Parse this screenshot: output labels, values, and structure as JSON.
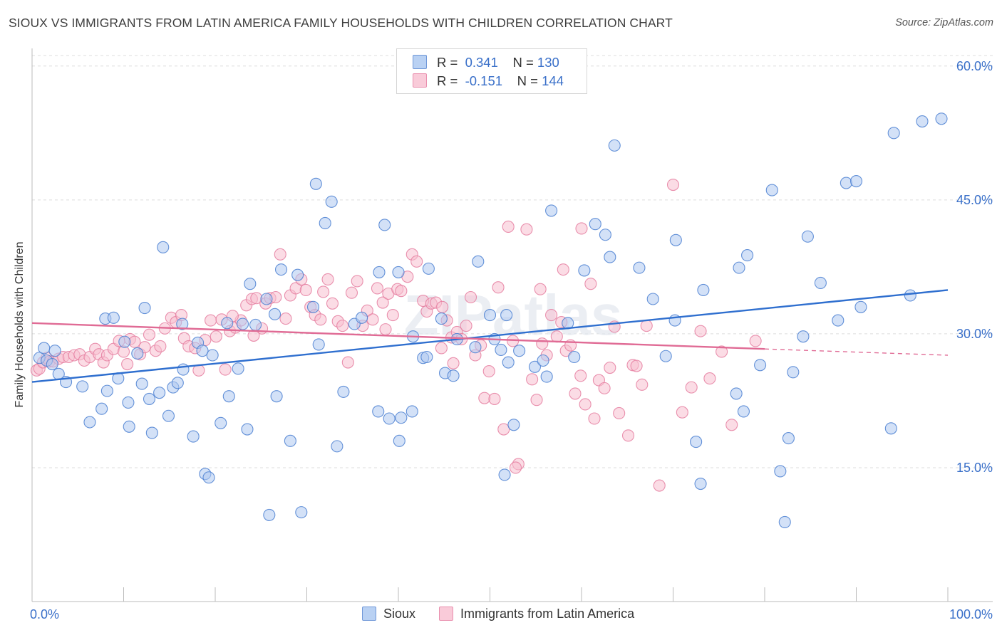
{
  "title": "SIOUX VS IMMIGRANTS FROM LATIN AMERICA FAMILY HOUSEHOLDS WITH CHILDREN CORRELATION CHART",
  "source": "Source: ZipAtlas.com",
  "watermark": "ZIPatlas",
  "legend": {
    "rows": [
      {
        "r_label": "R =",
        "r_value": "0.341",
        "n_label": "N =",
        "n_value": "130"
      },
      {
        "r_label": "R =",
        "r_value": "-0.151",
        "n_label": "N =",
        "n_value": "144"
      }
    ]
  },
  "bottom_legend": [
    {
      "label": "Sioux"
    },
    {
      "label": "Immigrants from Latin America"
    }
  ],
  "colors": {
    "series1_fill": "#aec9f0",
    "series1_stroke": "#4a7fd1",
    "series1_line": "#2f6fcf",
    "series2_fill": "#f7bfd0",
    "series2_stroke": "#e57ea0",
    "series2_line": "#e06b95",
    "tick_label": "#3a70c9",
    "grid": "#dcdcdc"
  },
  "chart_data": {
    "type": "scatter",
    "title": "SIOUX VS IMMIGRANTS FROM LATIN AMERICA FAMILY HOUSEHOLDS WITH CHILDREN CORRELATION CHART",
    "xlabel": "",
    "ylabel": "Family Households with Children",
    "xlim": [
      0,
      100
    ],
    "ylim": [
      0,
      61.5
    ],
    "x_tick_labels": [
      "0.0%",
      "100.0%"
    ],
    "y_ticks": [
      15,
      30,
      45,
      60
    ],
    "y_tick_labels": [
      "15.0%",
      "30.0%",
      "45.0%",
      "60.0%"
    ],
    "grid": "horizontal dashed",
    "legend_position": "top-center",
    "series": [
      {
        "name": "Sioux",
        "r": 0.341,
        "n": 130,
        "trend": {
          "x": [
            0,
            100
          ],
          "y": [
            24.6,
            34.9
          ]
        },
        "points": [
          [
            0.8,
            27.3
          ],
          [
            1.3,
            28.4
          ],
          [
            1.6,
            27.0
          ],
          [
            2.2,
            26.6
          ],
          [
            2.5,
            28.1
          ],
          [
            2.9,
            25.5
          ],
          [
            3.7,
            24.6
          ],
          [
            5.5,
            24.1
          ],
          [
            6.3,
            20.1
          ],
          [
            7.6,
            21.6
          ],
          [
            8.0,
            31.7
          ],
          [
            8.2,
            23.6
          ],
          [
            8.9,
            31.8
          ],
          [
            9.4,
            25.0
          ],
          [
            10.1,
            29.1
          ],
          [
            10.5,
            22.3
          ],
          [
            10.6,
            19.6
          ],
          [
            11.5,
            27.8
          ],
          [
            12.0,
            24.4
          ],
          [
            12.3,
            32.9
          ],
          [
            12.8,
            22.7
          ],
          [
            13.1,
            18.9
          ],
          [
            13.9,
            23.4
          ],
          [
            14.3,
            39.7
          ],
          [
            14.9,
            20.8
          ],
          [
            15.4,
            24.0
          ],
          [
            15.9,
            24.5
          ],
          [
            16.4,
            31.1
          ],
          [
            16.5,
            26.0
          ],
          [
            17.6,
            18.5
          ],
          [
            18.1,
            29.0
          ],
          [
            18.6,
            28.1
          ],
          [
            18.9,
            14.3
          ],
          [
            19.3,
            13.9
          ],
          [
            19.7,
            27.6
          ],
          [
            20.6,
            20.0
          ],
          [
            21.3,
            31.2
          ],
          [
            21.5,
            23.0
          ],
          [
            22.5,
            26.1
          ],
          [
            23.0,
            31.1
          ],
          [
            23.5,
            19.3
          ],
          [
            23.8,
            35.6
          ],
          [
            24.4,
            31.0
          ],
          [
            25.6,
            33.9
          ],
          [
            25.9,
            9.7
          ],
          [
            26.5,
            32.2
          ],
          [
            26.7,
            23.0
          ],
          [
            27.2,
            37.2
          ],
          [
            28.2,
            18.0
          ],
          [
            29.0,
            36.6
          ],
          [
            29.4,
            10.0
          ],
          [
            30.7,
            33.0
          ],
          [
            31.0,
            46.8
          ],
          [
            31.3,
            28.8
          ],
          [
            32.0,
            42.4
          ],
          [
            32.7,
            44.8
          ],
          [
            33.3,
            17.4
          ],
          [
            34.0,
            23.5
          ],
          [
            35.2,
            31.1
          ],
          [
            36.0,
            31.8
          ],
          [
            37.8,
            21.3
          ],
          [
            37.9,
            36.9
          ],
          [
            39.0,
            20.5
          ],
          [
            38.5,
            42.2
          ],
          [
            40.0,
            36.9
          ],
          [
            40.1,
            18.0
          ],
          [
            40.3,
            20.6
          ],
          [
            41.5,
            21.3
          ],
          [
            41.6,
            29.7
          ],
          [
            42.7,
            27.3
          ],
          [
            43.1,
            27.4
          ],
          [
            43.3,
            37.3
          ],
          [
            44.7,
            31.7
          ],
          [
            45.1,
            25.6
          ],
          [
            46.0,
            25.3
          ],
          [
            46.4,
            29.4
          ],
          [
            48.4,
            28.5
          ],
          [
            48.7,
            38.1
          ],
          [
            50.0,
            32.1
          ],
          [
            50.5,
            29.4
          ],
          [
            51.2,
            28.2
          ],
          [
            51.6,
            14.2
          ],
          [
            51.8,
            32.1
          ],
          [
            52.0,
            26.8
          ],
          [
            52.6,
            19.8
          ],
          [
            53.2,
            28.1
          ],
          [
            54.9,
            26.3
          ],
          [
            55.8,
            27.0
          ],
          [
            56.2,
            25.2
          ],
          [
            56.7,
            43.8
          ],
          [
            58.5,
            31.2
          ],
          [
            59.2,
            27.4
          ],
          [
            60.3,
            37.1
          ],
          [
            61.5,
            42.3
          ],
          [
            62.6,
            41.1
          ],
          [
            63.1,
            38.6
          ],
          [
            63.6,
            51.1
          ],
          [
            66.3,
            37.4
          ],
          [
            67.8,
            33.9
          ],
          [
            69.2,
            27.5
          ],
          [
            70.2,
            31.5
          ],
          [
            70.3,
            40.5
          ],
          [
            72.5,
            17.9
          ],
          [
            73.0,
            13.2
          ],
          [
            73.3,
            34.9
          ],
          [
            76.9,
            23.3
          ],
          [
            77.2,
            37.4
          ],
          [
            77.7,
            21.3
          ],
          [
            78.1,
            38.8
          ],
          [
            79.5,
            26.5
          ],
          [
            80.8,
            46.1
          ],
          [
            81.7,
            14.6
          ],
          [
            82.2,
            8.9
          ],
          [
            82.6,
            18.3
          ],
          [
            83.1,
            25.7
          ],
          [
            84.2,
            29.7
          ],
          [
            84.7,
            40.9
          ],
          [
            86.1,
            35.7
          ],
          [
            88.0,
            31.5
          ],
          [
            88.9,
            46.9
          ],
          [
            90.0,
            47.1
          ],
          [
            90.5,
            33.0
          ],
          [
            93.8,
            19.4
          ],
          [
            94.1,
            52.5
          ],
          [
            95.9,
            34.3
          ],
          [
            97.2,
            53.8
          ],
          [
            99.3,
            54.1
          ]
        ]
      },
      {
        "name": "Immigrants from Latin America",
        "r": -0.151,
        "n": 144,
        "trend": {
          "x": [
            0,
            80
          ],
          "y": [
            31.2,
            28.3
          ]
        },
        "trend_dashed": {
          "x": [
            80,
            100
          ],
          "y": [
            28.3,
            27.6
          ]
        },
        "points": [
          [
            0.5,
            25.9
          ],
          [
            0.8,
            26.1
          ],
          [
            1.2,
            26.8
          ],
          [
            1.6,
            27.3
          ],
          [
            1.9,
            26.9
          ],
          [
            2.3,
            26.9
          ],
          [
            2.9,
            27.2
          ],
          [
            3.4,
            27.4
          ],
          [
            4.0,
            27.4
          ],
          [
            4.6,
            27.6
          ],
          [
            5.2,
            27.7
          ],
          [
            5.7,
            27.0
          ],
          [
            6.3,
            27.4
          ],
          [
            6.9,
            28.3
          ],
          [
            7.3,
            27.7
          ],
          [
            7.8,
            26.8
          ],
          [
            8.2,
            27.6
          ],
          [
            8.9,
            28.3
          ],
          [
            9.5,
            29.2
          ],
          [
            10.0,
            28.0
          ],
          [
            10.4,
            26.6
          ],
          [
            10.7,
            29.4
          ],
          [
            11.2,
            29.1
          ],
          [
            11.8,
            27.7
          ],
          [
            12.3,
            28.5
          ],
          [
            12.8,
            29.9
          ],
          [
            13.5,
            28.1
          ],
          [
            14.5,
            30.6
          ],
          [
            15.2,
            31.8
          ],
          [
            15.7,
            31.3
          ],
          [
            16.3,
            32.1
          ],
          [
            16.6,
            29.5
          ],
          [
            17.1,
            28.6
          ],
          [
            17.8,
            28.4
          ],
          [
            18.2,
            25.9
          ],
          [
            18.9,
            29.3
          ],
          [
            19.5,
            31.5
          ],
          [
            20.1,
            29.7
          ],
          [
            20.7,
            31.6
          ],
          [
            21.1,
            26.0
          ],
          [
            21.6,
            30.3
          ],
          [
            22.2,
            30.7
          ],
          [
            22.8,
            31.5
          ],
          [
            23.4,
            33.2
          ],
          [
            24.0,
            33.9
          ],
          [
            24.5,
            34.0
          ],
          [
            25.1,
            30.6
          ],
          [
            25.5,
            33.4
          ],
          [
            26.0,
            34.0
          ],
          [
            26.6,
            34.1
          ],
          [
            27.1,
            38.9
          ],
          [
            27.7,
            31.7
          ],
          [
            28.2,
            34.3
          ],
          [
            28.8,
            35.1
          ],
          [
            29.4,
            36.1
          ],
          [
            29.9,
            34.9
          ],
          [
            30.4,
            33.0
          ],
          [
            30.9,
            32.1
          ],
          [
            31.5,
            31.6
          ],
          [
            31.8,
            34.7
          ],
          [
            32.3,
            36.1
          ],
          [
            32.8,
            33.4
          ],
          [
            33.4,
            31.4
          ],
          [
            33.9,
            30.9
          ],
          [
            34.5,
            26.8
          ],
          [
            34.9,
            34.6
          ],
          [
            35.5,
            35.9
          ],
          [
            36.1,
            30.9
          ],
          [
            36.6,
            32.6
          ],
          [
            37.2,
            31.6
          ],
          [
            37.7,
            35.1
          ],
          [
            38.3,
            33.5
          ],
          [
            38.9,
            34.5
          ],
          [
            39.4,
            32.1
          ],
          [
            39.9,
            35.0
          ],
          [
            40.3,
            34.8
          ],
          [
            41.0,
            36.4
          ],
          [
            41.5,
            38.9
          ],
          [
            42.0,
            38.1
          ],
          [
            42.7,
            33.7
          ],
          [
            43.1,
            32.5
          ],
          [
            43.6,
            33.4
          ],
          [
            44.1,
            33.5
          ],
          [
            44.7,
            28.4
          ],
          [
            45.3,
            31.5
          ],
          [
            45.8,
            29.6
          ],
          [
            46.4,
            30.2
          ],
          [
            46.9,
            29.4
          ],
          [
            47.4,
            30.9
          ],
          [
            47.9,
            34.1
          ],
          [
            48.4,
            27.6
          ],
          [
            49.0,
            28.7
          ],
          [
            49.4,
            22.8
          ],
          [
            49.9,
            25.8
          ],
          [
            50.5,
            22.7
          ],
          [
            50.9,
            35.2
          ],
          [
            51.5,
            19.3
          ],
          [
            52.0,
            42.0
          ],
          [
            52.5,
            29.2
          ],
          [
            53.1,
            15.4
          ],
          [
            54.0,
            41.7
          ],
          [
            54.6,
            24.9
          ],
          [
            55.1,
            22.6
          ],
          [
            55.7,
            28.9
          ],
          [
            56.2,
            27.6
          ],
          [
            56.7,
            32.1
          ],
          [
            57.3,
            29.7
          ],
          [
            57.8,
            31.3
          ],
          [
            58.3,
            28.1
          ],
          [
            58.8,
            28.7
          ],
          [
            59.3,
            23.3
          ],
          [
            59.9,
            25.3
          ],
          [
            60.4,
            22.1
          ],
          [
            61.0,
            35.6
          ],
          [
            61.4,
            20.5
          ],
          [
            61.9,
            24.8
          ],
          [
            62.5,
            23.9
          ],
          [
            63.1,
            26.2
          ],
          [
            64.1,
            21.1
          ],
          [
            65.1,
            18.6
          ],
          [
            65.6,
            26.5
          ],
          [
            66.0,
            26.4
          ],
          [
            66.6,
            24.3
          ],
          [
            67.1,
            30.9
          ],
          [
            68.5,
            13.0
          ],
          [
            70.0,
            46.7
          ],
          [
            71.0,
            21.2
          ],
          [
            72.0,
            24.0
          ],
          [
            73.0,
            30.3
          ],
          [
            74.0,
            25.0
          ],
          [
            75.3,
            28.0
          ],
          [
            76.4,
            19.8
          ],
          [
            79.0,
            29.2
          ],
          [
            52.8,
            15.0
          ],
          [
            55.5,
            35.0
          ],
          [
            58.0,
            37.2
          ],
          [
            24.2,
            29.8
          ],
          [
            46.0,
            26.7
          ],
          [
            14.0,
            28.6
          ],
          [
            21.9,
            32.0
          ],
          [
            63.6,
            30.8
          ],
          [
            38.6,
            30.5
          ],
          [
            60.0,
            41.8
          ],
          [
            44.8,
            33.0
          ]
        ]
      }
    ]
  }
}
